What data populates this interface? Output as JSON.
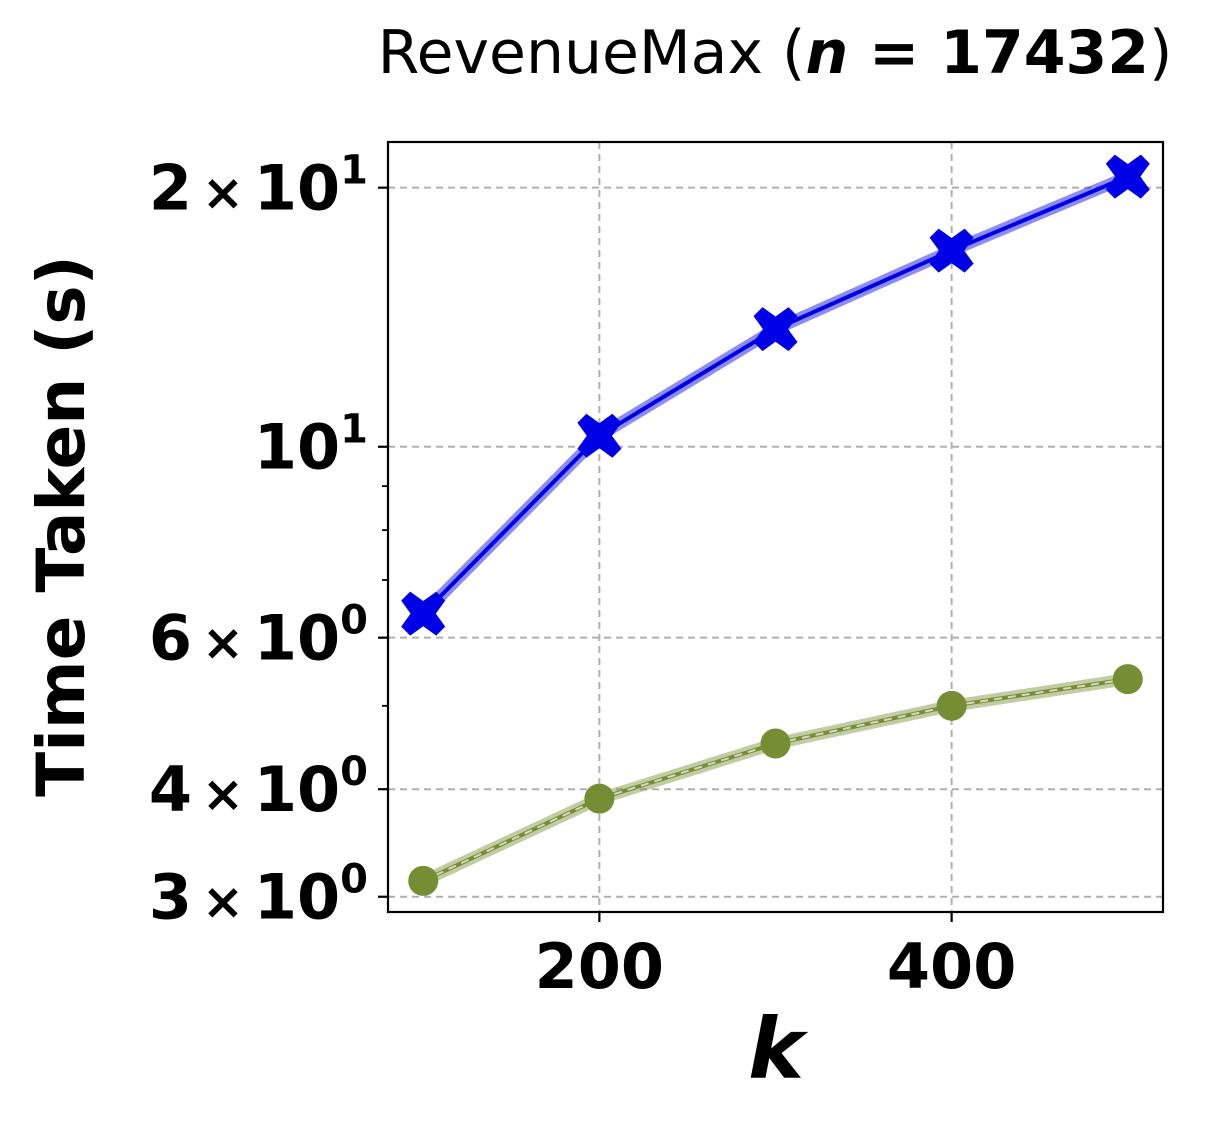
{
  "chart_data": {
    "type": "line",
    "title": "RevenueMax (n = 17432)",
    "title_parts": {
      "prefix": "RevenueMax (",
      "var": "n",
      "equals": " = ",
      "value": "17432",
      "suffix": ")"
    },
    "xlabel": "k",
    "ylabel": "Time Taken (s)",
    "x_scale": "linear",
    "y_scale": "log",
    "xlim": [
      80,
      520
    ],
    "ylim": [
      2.88,
      22.6
    ],
    "grid": true,
    "x_ticks": [
      {
        "value": 200,
        "label": "200"
      },
      {
        "value": 400,
        "label": "400"
      }
    ],
    "y_ticks": [
      {
        "value": 20,
        "mantissa": "2",
        "exp": "1"
      },
      {
        "value": 10,
        "mantissa": "",
        "exp": "1"
      },
      {
        "value": 6,
        "mantissa": "6",
        "exp": "0"
      },
      {
        "value": 4,
        "mantissa": "4",
        "exp": "0"
      },
      {
        "value": 3,
        "mantissa": "3",
        "exp": "0"
      }
    ],
    "y_minor_ticks": [
      5,
      7,
      8,
      9
    ],
    "series": [
      {
        "marker": "X",
        "color": "#0000e6",
        "x": [
          100,
          200,
          300,
          400,
          500
        ],
        "y": [
          6.4,
          10.3,
          13.7,
          16.9,
          20.6
        ]
      },
      {
        "marker": "o",
        "color": "#758d33",
        "x": [
          100,
          200,
          300,
          400,
          500
        ],
        "y": [
          3.13,
          3.9,
          4.52,
          5.0,
          5.37
        ]
      }
    ]
  }
}
